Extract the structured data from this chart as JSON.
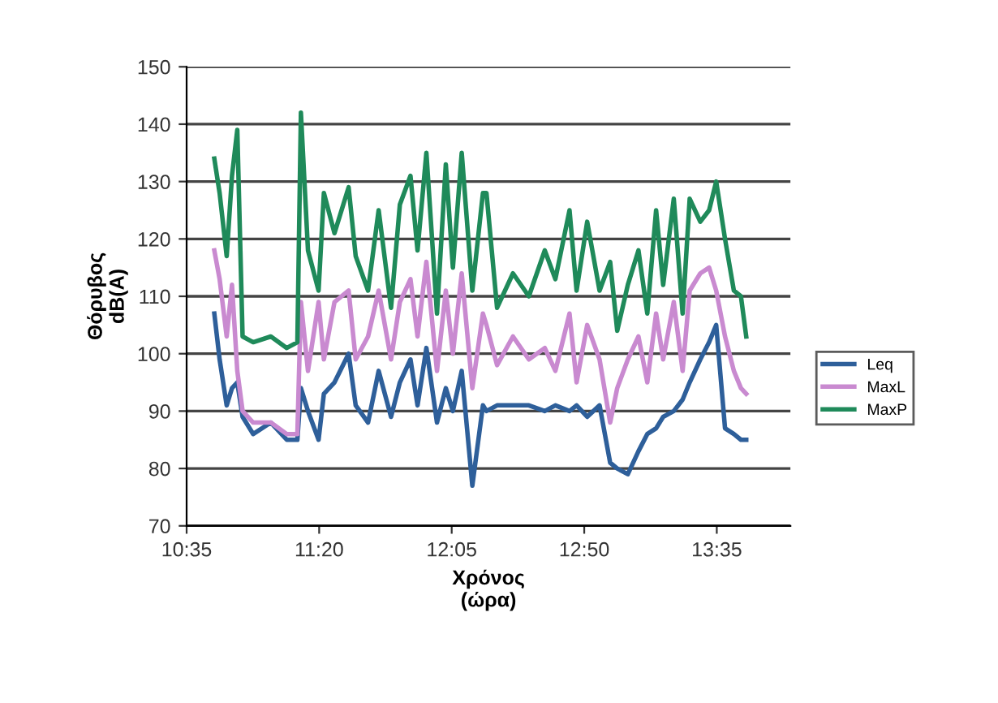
{
  "chart_data": {
    "type": "line",
    "xlabel": "Χρόνος\n(ώρα)",
    "ylabel": "Θόρυβος\ndB(A)",
    "xlim": [
      10.5833,
      14.0
    ],
    "ylim": [
      70,
      150
    ],
    "xticks": [
      {
        "value": 10.5833,
        "label": "10:35"
      },
      {
        "value": 11.3333,
        "label": "11:20"
      },
      {
        "value": 12.0833,
        "label": "12:05"
      },
      {
        "value": 12.8333,
        "label": "12:50"
      },
      {
        "value": 13.5833,
        "label": "13:35"
      }
    ],
    "yticks": [
      70,
      80,
      90,
      100,
      110,
      120,
      130,
      140,
      150
    ],
    "grid": "y",
    "legend": "right",
    "marker": "none",
    "line_style": "solid",
    "x": [
      10.74,
      10.77,
      10.81,
      10.84,
      10.87,
      10.9,
      10.96,
      11.06,
      11.15,
      11.21,
      11.23,
      11.27,
      11.33,
      11.36,
      11.42,
      11.5,
      11.54,
      11.61,
      11.67,
      11.74,
      11.79,
      11.85,
      11.89,
      11.94,
      12.0,
      12.05,
      12.09,
      12.14,
      12.2,
      12.26,
      12.28,
      12.34,
      12.43,
      12.52,
      12.61,
      12.67,
      12.75,
      12.79,
      12.85,
      12.92,
      12.98,
      13.02,
      13.08,
      13.14,
      13.19,
      13.24,
      13.28,
      13.34,
      13.39,
      13.43,
      13.49,
      13.54,
      13.58,
      13.63,
      13.68,
      13.72,
      13.75
    ],
    "series": [
      {
        "name": "Leq",
        "color": "#2e5f9a",
        "values": [
          107,
          99,
          91,
          94,
          95,
          89,
          86,
          88,
          85,
          85,
          94,
          90,
          85,
          93,
          95,
          100,
          91,
          88,
          97,
          89,
          95,
          99,
          91,
          101,
          88,
          94,
          90,
          97,
          77,
          91,
          90,
          91,
          91,
          91,
          90,
          91,
          90,
          91,
          89,
          91,
          81,
          80,
          79,
          83,
          86,
          87,
          89,
          90,
          92,
          95,
          99,
          102,
          105,
          87,
          86,
          85,
          85
        ]
      },
      {
        "name": "MaxL",
        "color": "#c98ad0",
        "values": [
          118,
          113,
          103,
          112,
          97,
          90,
          88,
          88,
          86,
          86,
          109,
          97,
          109,
          99,
          109,
          111,
          99,
          103,
          111,
          99,
          109,
          113,
          103,
          116,
          97,
          111,
          100,
          114,
          94,
          107,
          105,
          98,
          103,
          99,
          101,
          97,
          107,
          95,
          105,
          99,
          88,
          94,
          99,
          103,
          95,
          107,
          99,
          109,
          97,
          111,
          114,
          115,
          111,
          103,
          97,
          94,
          93
        ]
      },
      {
        "name": "MaxP",
        "color": "#1f8a5a",
        "values": [
          134,
          128,
          117,
          131,
          139,
          103,
          102,
          103,
          101,
          102,
          142,
          118,
          111,
          128,
          121,
          129,
          117,
          111,
          125,
          108,
          126,
          131,
          118,
          135,
          107,
          133,
          115,
          135,
          111,
          128,
          128,
          108,
          114,
          110,
          118,
          113,
          125,
          111,
          123,
          111,
          116,
          104,
          112,
          118,
          107,
          125,
          112,
          127,
          107,
          127,
          123,
          125,
          130,
          120,
          111,
          110,
          103
        ]
      }
    ]
  }
}
